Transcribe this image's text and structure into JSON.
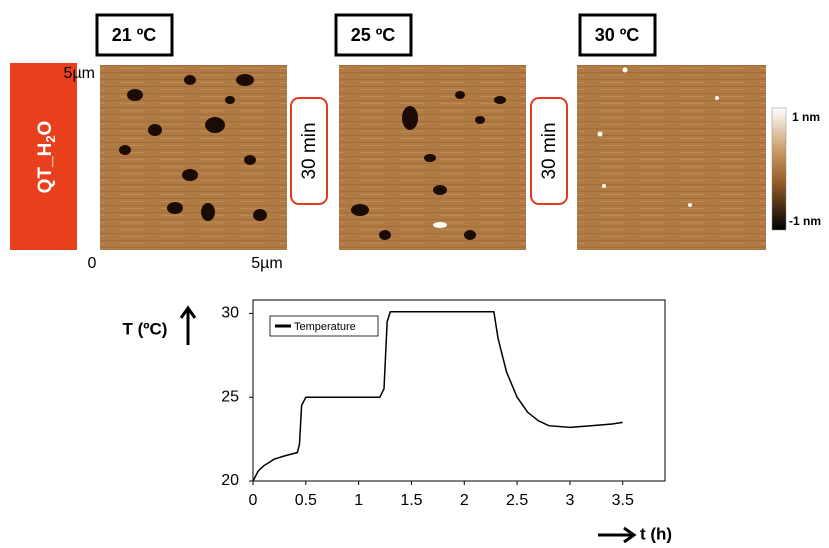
{
  "panels": {
    "temperatures": [
      "21 ºC",
      "25 ºC",
      "30 ºC"
    ],
    "interval": [
      "30 min",
      "30 min"
    ],
    "sample": {
      "prefix": "QT_H",
      "sub": "2",
      "suffix": "O"
    },
    "scale_top": "5µm",
    "scale_origin": "0",
    "scale_right": "5µm",
    "colorbar": {
      "top": "1 nm",
      "bottom": "-1 nm"
    }
  },
  "chart_data": {
    "type": "line",
    "xlabel": "t (h)",
    "ylabel": "T (ºC)",
    "x": [
      0,
      0.05,
      0.1,
      0.2,
      0.3,
      0.42,
      0.44,
      0.46,
      0.5,
      0.7,
      1.0,
      1.2,
      1.24,
      1.27,
      1.3,
      1.6,
      2.0,
      2.28,
      2.32,
      2.4,
      2.5,
      2.6,
      2.7,
      2.8,
      3.0,
      3.2,
      3.4,
      3.5
    ],
    "series": [
      {
        "name": "Temperature",
        "color": "#000000",
        "values": [
          20,
          20.6,
          20.9,
          21.3,
          21.5,
          21.7,
          22.2,
          24.5,
          25,
          25,
          25,
          25,
          25.5,
          29.5,
          30.1,
          30.1,
          30.1,
          30.1,
          28.5,
          26.5,
          25.0,
          24.1,
          23.6,
          23.3,
          23.2,
          23.3,
          23.4,
          23.5
        ]
      }
    ],
    "xlim": [
      0,
      3.9
    ],
    "ylim": [
      20,
      30.8
    ],
    "xticks": [
      0,
      0.5,
      1,
      1.5,
      2,
      2.5,
      3,
      3.5
    ],
    "yticks": [
      20,
      25,
      30
    ],
    "legend": "top-left"
  }
}
